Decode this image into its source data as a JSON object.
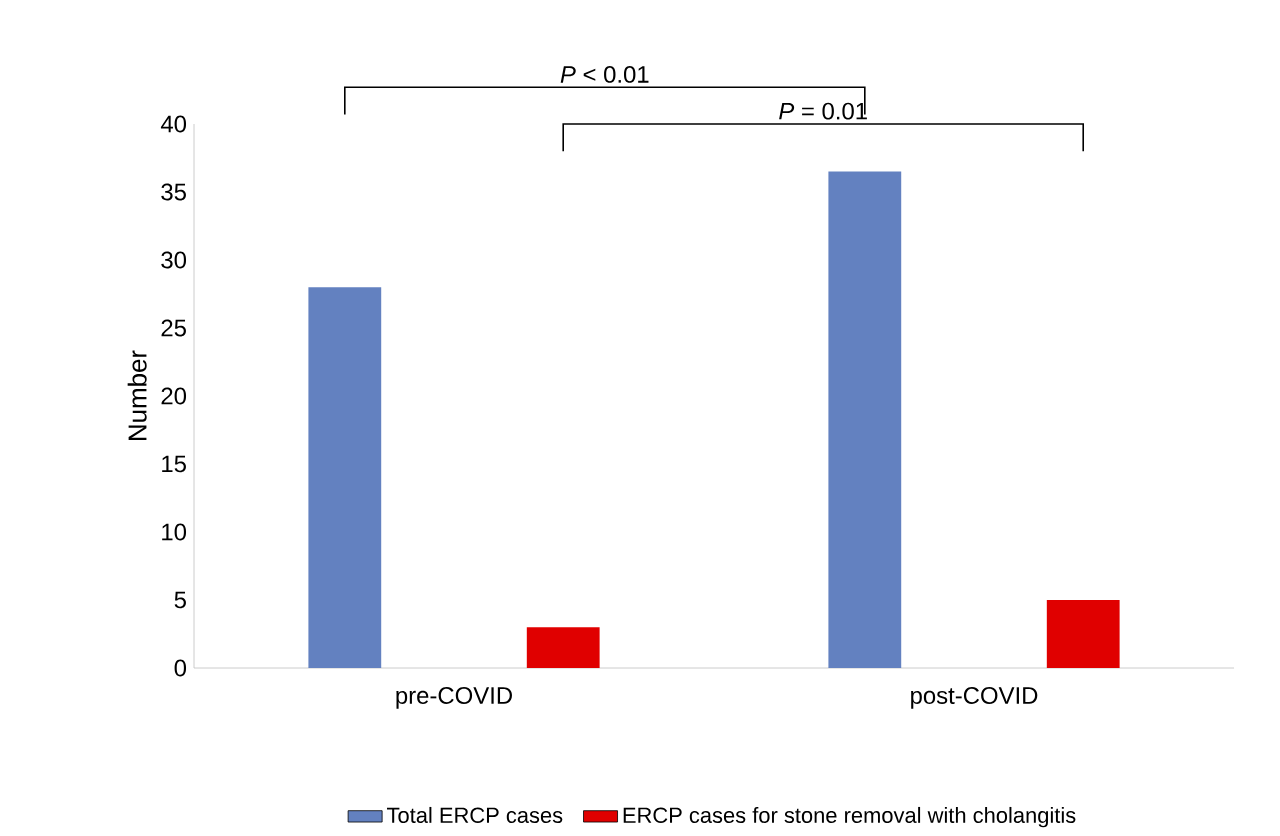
{
  "chart_data": {
    "type": "bar",
    "categories": [
      "pre-COVID",
      "post-COVID"
    ],
    "ylabel": "Number",
    "series": [
      {
        "name": "Total ERCP cases",
        "color": "#6381c0",
        "values": [
          28,
          36.5
        ]
      },
      {
        "name": "ERCP cases for stone removal with cholangitis",
        "color": "#e00000",
        "values": [
          3,
          5
        ]
      }
    ],
    "ylim": [
      0,
      40
    ],
    "yticks": [
      0,
      5,
      10,
      15,
      20,
      25,
      30,
      35,
      40
    ],
    "grid": false,
    "legend": "bottom",
    "annotations": [
      "*P* < 0.01",
      "*P* = 0.01"
    ]
  }
}
